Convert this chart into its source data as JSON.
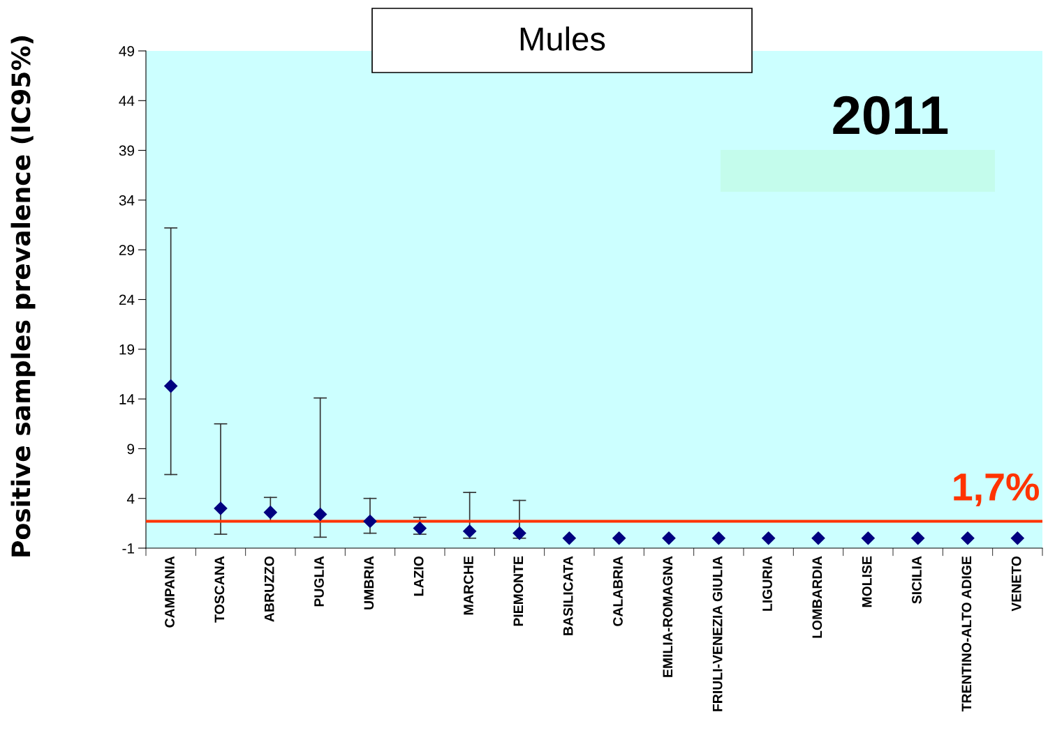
{
  "chart_data": {
    "type": "scatter",
    "title": "Mules",
    "ylabel": "Positive samples prevalence (IC95%)",
    "annotations": [
      "2011"
    ],
    "categories": [
      "CAMPANIA",
      "TOSCANA",
      "ABRUZZO",
      "PUGLIA",
      "UMBRIA",
      "LAZIO",
      "MARCHE",
      "PIEMONTE",
      "BASILICATA",
      "CALABRIA",
      "EMILIA-ROMAGNA",
      "FRIULI-VENEZIA GIULIA",
      "LIGURIA",
      "LOMBARDIA",
      "MOLISE",
      "SICILIA",
      "TRENTINO-ALTO ADIGE",
      "VENETO"
    ],
    "series": [
      {
        "color": "#000080",
        "values": [
          15.3,
          3.0,
          2.6,
          2.4,
          1.7,
          1.0,
          0.7,
          0.5,
          0,
          0,
          0,
          0,
          0,
          0,
          0,
          0,
          0,
          0
        ],
        "errors": [
          [
            6.4,
            31.2
          ],
          [
            0.4,
            11.5
          ],
          [
            1.7,
            4.1
          ],
          [
            0.1,
            14.1
          ],
          [
            0.5,
            4.0
          ],
          [
            0.4,
            2.1
          ],
          [
            0.0,
            4.6
          ],
          [
            0.0,
            3.8
          ],
          null,
          null,
          null,
          null,
          null,
          null,
          null,
          null,
          null,
          null
        ]
      }
    ],
    "marker": "diamond",
    "ylim": [
      -1,
      49
    ],
    "yticks": [
      -1,
      4,
      9,
      14,
      19,
      24,
      29,
      34,
      39,
      44,
      49
    ],
    "ref_lines": [
      {
        "axis": "y",
        "value": 1.7,
        "label": "1,7%",
        "color": "#ff3300"
      }
    ],
    "grid": false,
    "legend": false
  }
}
